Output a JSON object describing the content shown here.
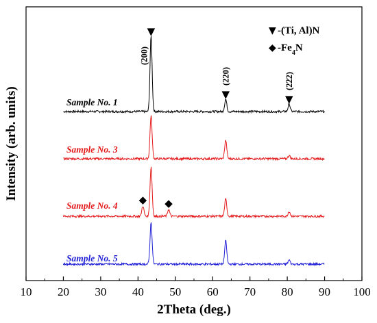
{
  "chart_data": {
    "type": "line",
    "title": "",
    "xlabel": "2Theta (deg.)",
    "ylabel": "Intensity (arb. units)",
    "xlim": [
      10,
      100
    ],
    "xticks": [
      10,
      20,
      30,
      40,
      50,
      60,
      70,
      80,
      90,
      100
    ],
    "x_range": [
      20,
      90
    ],
    "y_unit": "arbitrary",
    "grid": false,
    "series": [
      {
        "name": "Sample No. 1",
        "color": "#000000",
        "baseline": 0,
        "peaks": [
          {
            "x": 43.5,
            "height": 110
          },
          {
            "x": 63.5,
            "height": 18
          },
          {
            "x": 80.5,
            "height": 11
          }
        ]
      },
      {
        "name": "Sample No. 3",
        "color": "#e41a1c",
        "baseline": 0,
        "peaks": [
          {
            "x": 43.5,
            "height": 63
          },
          {
            "x": 63.5,
            "height": 27
          },
          {
            "x": 80.5,
            "height": 5
          }
        ]
      },
      {
        "name": "Sample No. 4",
        "color": "#e41a1c",
        "baseline": 0,
        "peaks": [
          {
            "x": 41.3,
            "height": 15
          },
          {
            "x": 43.5,
            "height": 72
          },
          {
            "x": 48.2,
            "height": 10
          },
          {
            "x": 63.5,
            "height": 25
          },
          {
            "x": 80.5,
            "height": 7
          }
        ]
      },
      {
        "name": "Sample No. 5",
        "color": "#1f1fd6",
        "baseline": 0,
        "peaks": [
          {
            "x": 43.5,
            "height": 61
          },
          {
            "x": 63.5,
            "height": 34
          },
          {
            "x": 80.5,
            "height": 6
          }
        ]
      }
    ],
    "peak_annotations": [
      {
        "label": "(200)",
        "x": 43.5,
        "marker": "▼"
      },
      {
        "label": "(220)",
        "x": 63.5,
        "marker": "▼"
      },
      {
        "label": "(222)",
        "x": 80.5,
        "marker": "▼"
      }
    ],
    "phase_markers": [
      {
        "x": 41.3,
        "marker": "◆"
      },
      {
        "x": 48.2,
        "marker": "◆"
      }
    ],
    "legend": {
      "placement": "top-right",
      "entries": [
        {
          "marker": "▼",
          "text": "-(Ti, Al)N"
        },
        {
          "marker": "◆",
          "text": "-Fe",
          "sub": "4",
          "suffix": "N"
        }
      ]
    }
  }
}
